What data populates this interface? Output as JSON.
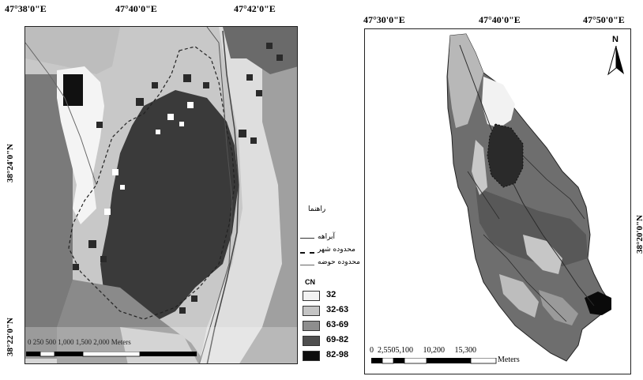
{
  "left_map": {
    "top_coords": [
      "47°38'0\"E",
      "47°40'0\"E",
      "47°42'0\"E"
    ],
    "side_coords": [
      "38°24'0\"N",
      "38°22'0\"N"
    ],
    "scale_text": "0 250 500 1,000 1,500 2,000 Meters"
  },
  "right_map": {
    "top_coords": [
      "47°30'0\"E",
      "47°40'0\"E",
      "47°50'0\"E"
    ],
    "side_coord": "38°20'0\"N",
    "north_label": "N",
    "scale_numbers": "0  2,5505,100     10,200     15,300",
    "scale_unit": "Meters"
  },
  "legend": {
    "title": "راهنما",
    "lines": [
      {
        "label": "آبراهه",
        "style": "solid"
      },
      {
        "label": "محدوده شهر",
        "style": "dashed"
      },
      {
        "label": "محدوده حوضه",
        "style": "thin"
      }
    ],
    "cn_title": "CN",
    "classes": [
      {
        "label": "32",
        "color": "#f2f2f2"
      },
      {
        "label": "32-63",
        "color": "#c4c4c4"
      },
      {
        "label": "63-69",
        "color": "#8e8e8e"
      },
      {
        "label": "69-82",
        "color": "#4f4f4f"
      },
      {
        "label": "82-98",
        "color": "#0d0d0d"
      }
    ]
  }
}
